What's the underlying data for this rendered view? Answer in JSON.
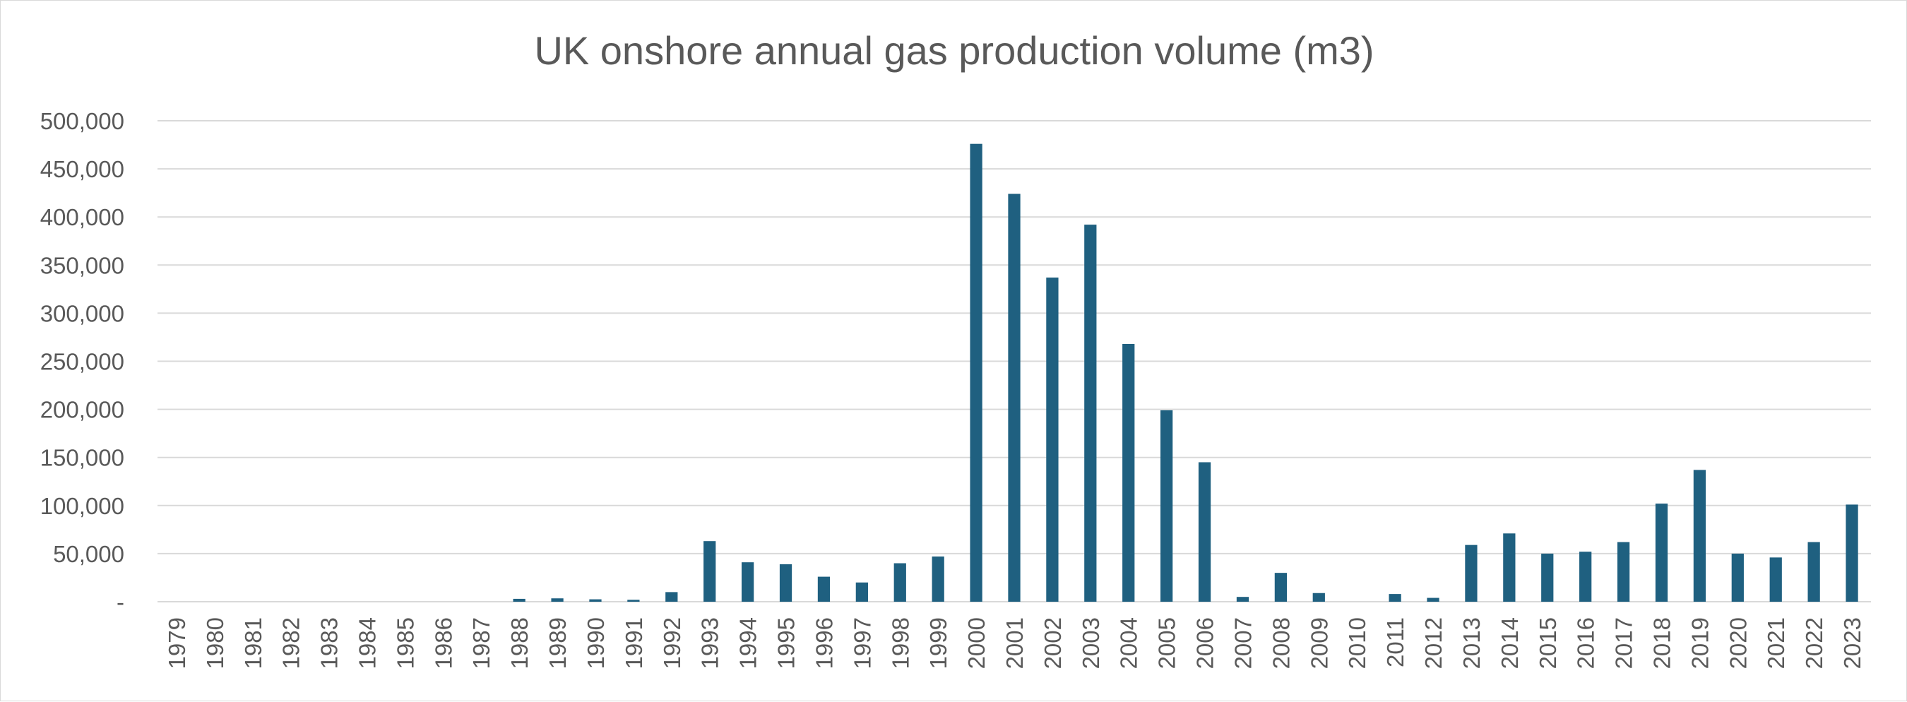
{
  "chart_data": {
    "type": "bar",
    "title": "UK onshore annual gas production volume (m3)",
    "xlabel": "",
    "ylabel": "",
    "ylim": [
      0,
      500000
    ],
    "yticks": [
      0,
      50000,
      100000,
      150000,
      200000,
      250000,
      300000,
      350000,
      400000,
      450000,
      500000
    ],
    "ytick_labels": [
      "-",
      "50,000",
      "100,000",
      "150,000",
      "200,000",
      "250,000",
      "300,000",
      "350,000",
      "400,000",
      "450,000",
      "500,000"
    ],
    "grid": true,
    "legend": "none",
    "bar_color": "#1f6080",
    "categories": [
      "1979",
      "1980",
      "1981",
      "1982",
      "1983",
      "1984",
      "1985",
      "1986",
      "1987",
      "1988",
      "1989",
      "1990",
      "1991",
      "1992",
      "1993",
      "1994",
      "1995",
      "1996",
      "1997",
      "1998",
      "1999",
      "2000",
      "2001",
      "2002",
      "2003",
      "2004",
      "2005",
      "2006",
      "2007",
      "2008",
      "2009",
      "2010",
      "2011",
      "2012",
      "2013",
      "2014",
      "2015",
      "2016",
      "2017",
      "2018",
      "2019",
      "2020",
      "2021",
      "2022",
      "2023"
    ],
    "values": [
      0,
      0,
      0,
      0,
      0,
      0,
      0,
      0,
      0,
      3000,
      3500,
      2500,
      2000,
      10000,
      63000,
      41000,
      39000,
      26000,
      20000,
      40000,
      47000,
      476000,
      424000,
      337000,
      392000,
      268000,
      199000,
      145000,
      5000,
      30000,
      9000,
      0,
      8000,
      4000,
      59000,
      71000,
      50000,
      52000,
      62000,
      102000,
      137000,
      50000,
      46000,
      62000,
      101000
    ]
  }
}
